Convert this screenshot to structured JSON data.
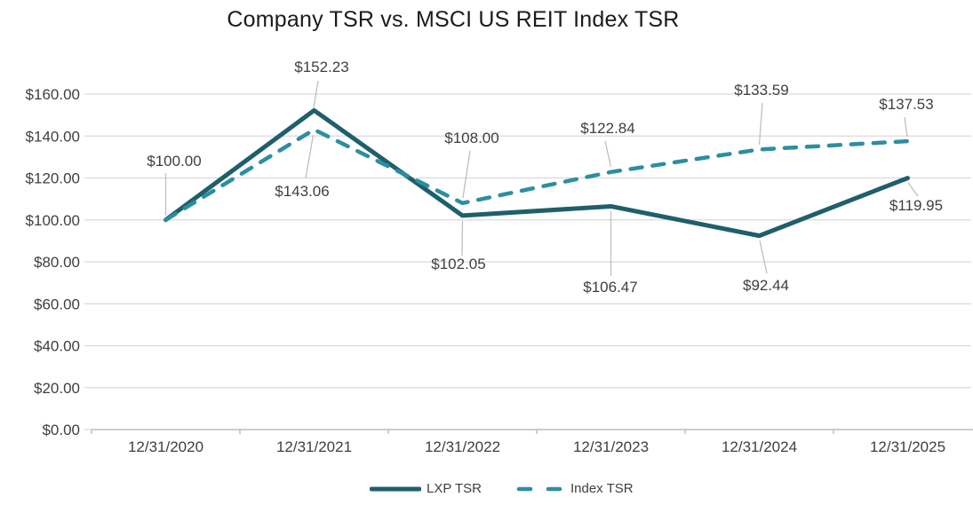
{
  "chart_data": {
    "type": "line",
    "title": "Company TSR vs. MSCI US REIT Index TSR",
    "categories": [
      "12/31/2020",
      "12/31/2021",
      "12/31/2022",
      "12/31/2023",
      "12/31/2024",
      "12/31/2025"
    ],
    "series": [
      {
        "name": "LXP TSR",
        "style": "solid",
        "color": "#1f5f6b",
        "values": [
          100.0,
          152.23,
          102.05,
          106.47,
          92.44,
          119.95
        ],
        "labels": [
          "$100.00",
          "$152.23",
          "$102.05",
          "$106.47",
          "$92.44",
          "$119.95"
        ]
      },
      {
        "name": "Index TSR",
        "style": "dashed",
        "color": "#2b8fa0",
        "values": [
          100.0,
          143.06,
          108.0,
          122.84,
          133.59,
          137.53
        ],
        "labels": [
          null,
          "$143.06",
          "$108.00",
          "$122.84",
          "$133.59",
          "$137.53"
        ]
      }
    ],
    "y_axis": {
      "min": 0,
      "max": 160,
      "step": 20,
      "tick_labels": [
        "$0.00",
        "$20.00",
        "$40.00",
        "$60.00",
        "$80.00",
        "$100.00",
        "$120.00",
        "$140.00",
        "$160.00"
      ]
    },
    "x_axis": {
      "tick_labels": [
        "12/31/2020",
        "12/31/2021",
        "12/31/2022",
        "12/31/2023",
        "12/31/2024",
        "12/31/2025"
      ]
    },
    "grid": true,
    "legend_position": "bottom",
    "colors": {
      "gridline": "#d9d9d9",
      "axis": "#bfbfbf",
      "leader_line": "#bfbfbf",
      "label_text": "#3f3f3f"
    }
  }
}
